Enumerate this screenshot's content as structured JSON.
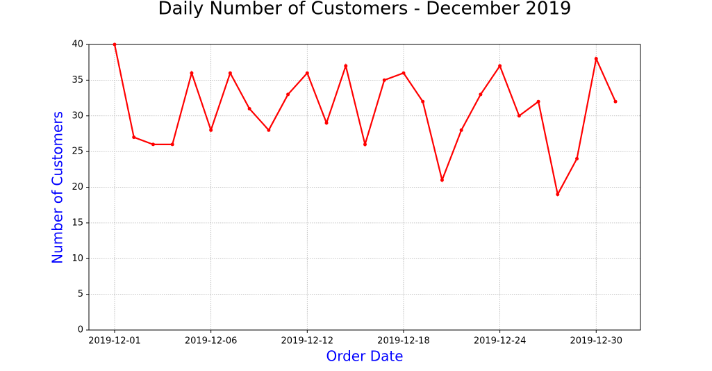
{
  "chart_data": {
    "type": "line",
    "title": "Daily Number of Customers - December 2019",
    "x_label": "Order Date",
    "y_label": "Number of Customers",
    "x": [
      "2019-12-01",
      "2019-12-02",
      "2019-12-03",
      "2019-12-04",
      "2019-12-05",
      "2019-12-06",
      "2019-12-07",
      "2019-12-08",
      "2019-12-09",
      "2019-12-10",
      "2019-12-12",
      "2019-12-13",
      "2019-12-14",
      "2019-12-15",
      "2019-12-16",
      "2019-12-18",
      "2019-12-19",
      "2019-12-20",
      "2019-12-21",
      "2019-12-22",
      "2019-12-24",
      "2019-12-25",
      "2019-12-26",
      "2019-12-27",
      "2019-12-28",
      "2019-12-30",
      "2019-12-31"
    ],
    "series": [
      {
        "name": "Number of Customers",
        "color": "#ff0000",
        "values": [
          40,
          27,
          26,
          26,
          36,
          28,
          36,
          31,
          28,
          33,
          36,
          29,
          37,
          26,
          35,
          36,
          32,
          21,
          28,
          33,
          37,
          30,
          32,
          19,
          24,
          38,
          32
        ]
      }
    ],
    "xticks": [
      "2019-12-01",
      "2019-12-06",
      "2019-12-12",
      "2019-12-18",
      "2019-12-24",
      "2019-12-30"
    ],
    "ylim": [
      0,
      40
    ],
    "yticks": [
      0,
      5,
      10,
      15,
      20,
      25,
      30,
      35,
      40
    ],
    "grid": true,
    "label_color": "#0000ff"
  }
}
